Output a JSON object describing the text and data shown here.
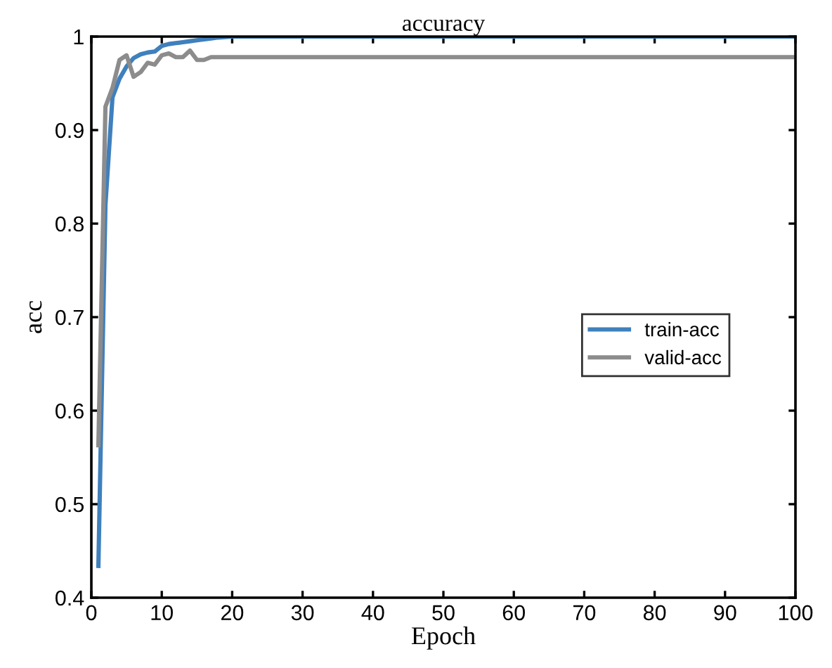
{
  "chart_data": {
    "type": "line",
    "title": "accuracy",
    "xlabel": "Epoch",
    "ylabel": "acc",
    "series": [
      {
        "name": "train-acc",
        "color": "#3f80bd",
        "x": [
          1,
          2,
          3,
          4,
          5,
          6,
          7,
          8,
          9,
          10,
          11,
          12,
          13,
          14,
          15,
          16,
          17,
          18,
          20,
          25,
          30,
          40,
          50,
          60,
          70,
          80,
          90,
          100
        ],
        "values": [
          0.434,
          0.82,
          0.935,
          0.955,
          0.968,
          0.977,
          0.981,
          0.983,
          0.984,
          0.99,
          0.992,
          0.993,
          0.994,
          0.995,
          0.996,
          0.997,
          0.998,
          0.999,
          1,
          1,
          1,
          1,
          1,
          1,
          1,
          1,
          1,
          1
        ]
      },
      {
        "name": "valid-acc",
        "color": "#8c8c8c",
        "x": [
          1,
          2,
          3,
          4,
          5,
          6,
          7,
          8,
          9,
          10,
          11,
          12,
          13,
          14,
          15,
          16,
          17,
          18,
          20,
          25,
          30,
          40,
          50,
          60,
          70,
          80,
          90,
          100
        ],
        "values": [
          0.563,
          0.925,
          0.945,
          0.975,
          0.98,
          0.957,
          0.962,
          0.972,
          0.97,
          0.98,
          0.982,
          0.978,
          0.978,
          0.985,
          0.975,
          0.975,
          0.978,
          0.978,
          0.978,
          0.978,
          0.978,
          0.978,
          0.978,
          0.978,
          0.978,
          0.978,
          0.978,
          0.978
        ]
      }
    ],
    "xlim": [
      0,
      100
    ],
    "ylim": [
      0.4,
      1
    ],
    "xticks": [
      0,
      10,
      20,
      30,
      40,
      50,
      60,
      70,
      80,
      90,
      100
    ],
    "yticks": [
      0.4,
      0.5,
      0.6,
      0.7,
      0.8,
      0.9,
      1
    ],
    "grid": false,
    "legend": "right",
    "marker": "none",
    "line_style": "solid"
  }
}
